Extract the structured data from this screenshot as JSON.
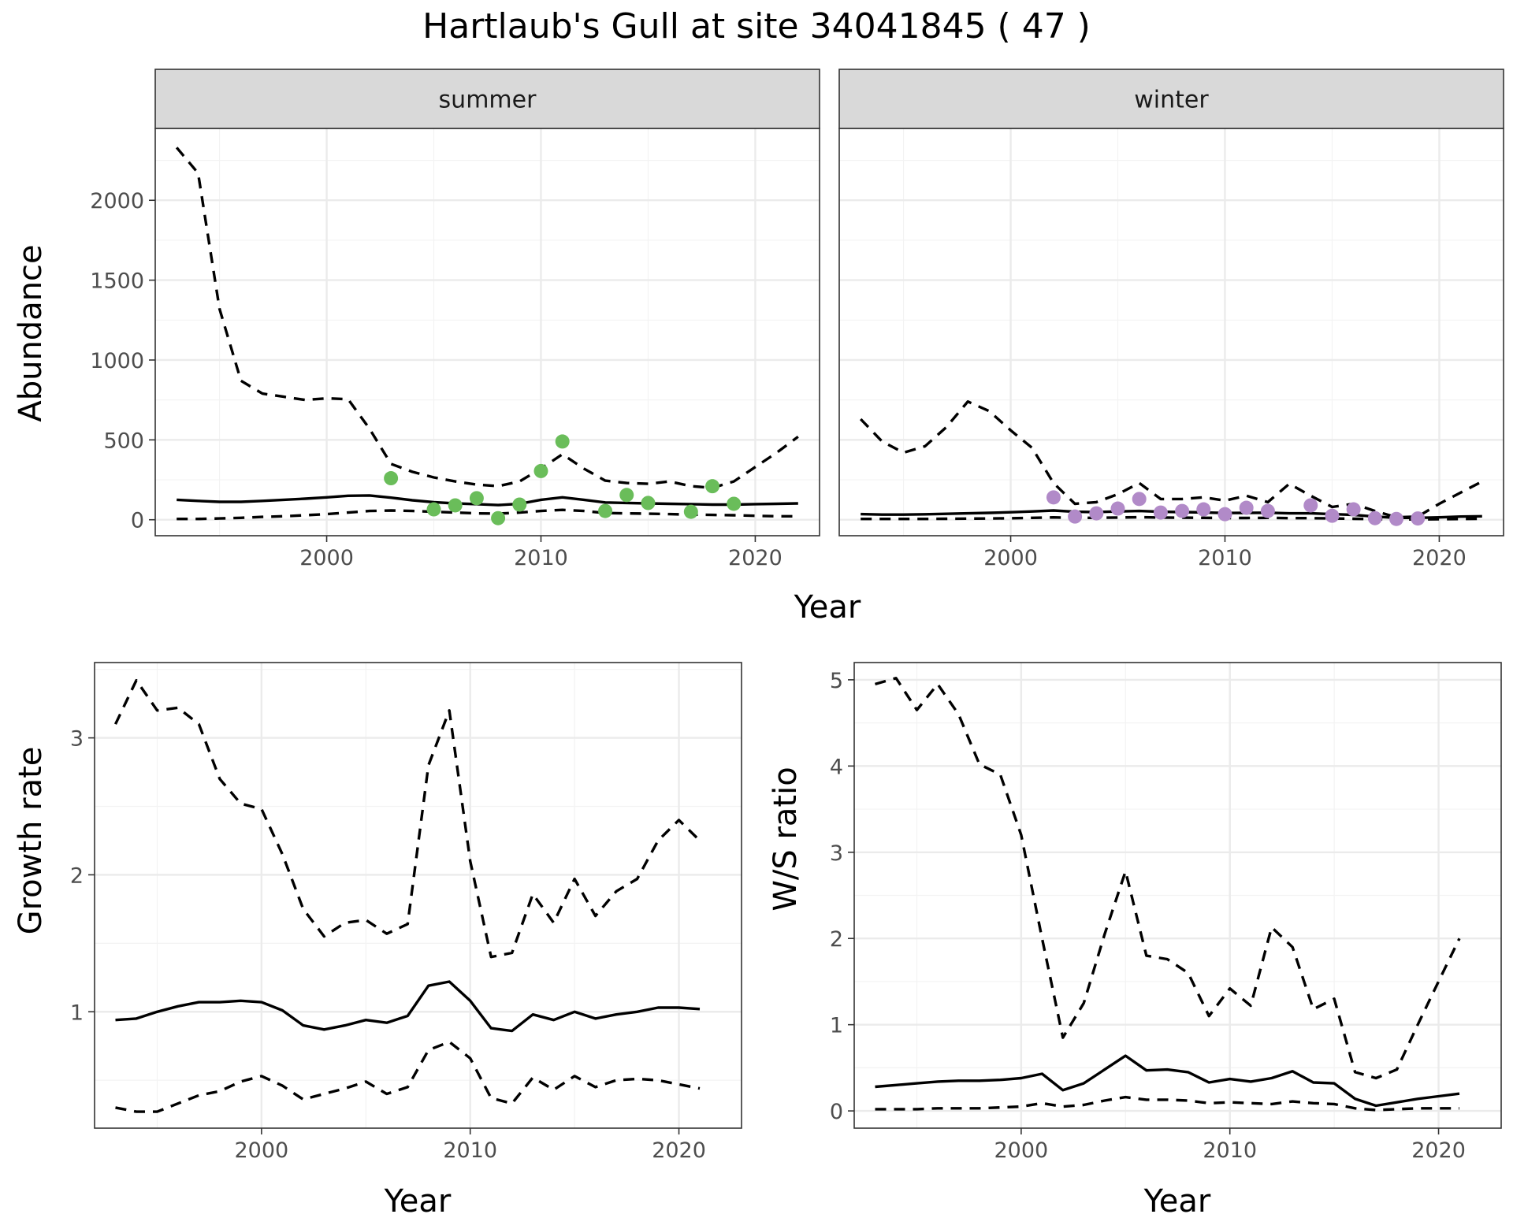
{
  "title": "Hartlaub's Gull at site 34041845 ( 47 )",
  "colors": {
    "summer_points": "#6abd5a",
    "winter_points": "#b18ac8",
    "lines": "#000000"
  },
  "chart_data": [
    {
      "type": "line",
      "panel": "summer",
      "facet_label": "summer",
      "xlabel": "Year",
      "ylabel": "Abundance",
      "xlim": [
        1992,
        2023
      ],
      "ylim": [
        -100,
        2450
      ],
      "x_ticks": [
        2000,
        2010,
        2020
      ],
      "y_ticks": [
        0,
        500,
        1000,
        1500,
        2000
      ],
      "grid": true,
      "x": [
        1993,
        1994,
        1995,
        1996,
        1997,
        1998,
        1999,
        2000,
        2001,
        2002,
        2003,
        2004,
        2005,
        2006,
        2007,
        2008,
        2009,
        2010,
        2011,
        2012,
        2013,
        2014,
        2015,
        2016,
        2017,
        2018,
        2019,
        2020,
        2021,
        2022
      ],
      "series": [
        {
          "role": "estimate",
          "values": [
            125,
            118,
            112,
            112,
            118,
            125,
            132,
            140,
            150,
            152,
            138,
            122,
            110,
            102,
            98,
            92,
            100,
            125,
            140,
            125,
            108,
            105,
            102,
            100,
            98,
            95,
            95,
            98,
            100,
            102
          ]
        },
        {
          "role": "upper",
          "values": [
            2330,
            2170,
            1320,
            870,
            790,
            770,
            750,
            760,
            755,
            570,
            350,
            300,
            265,
            240,
            220,
            210,
            240,
            320,
            410,
            320,
            245,
            230,
            225,
            240,
            210,
            200,
            240,
            330,
            420,
            520
          ]
        },
        {
          "role": "lower",
          "values": [
            5,
            5,
            8,
            12,
            18,
            22,
            28,
            35,
            45,
            55,
            58,
            55,
            50,
            45,
            40,
            38,
            45,
            55,
            62,
            55,
            42,
            40,
            38,
            35,
            32,
            30,
            28,
            25,
            22,
            22
          ]
        }
      ],
      "points": {
        "x": [
          2003,
          2005,
          2006,
          2007,
          2008,
          2009,
          2010,
          2011,
          2013,
          2014,
          2015,
          2017,
          2018,
          2019
        ],
        "y": [
          260,
          65,
          90,
          135,
          10,
          95,
          305,
          490,
          55,
          155,
          105,
          50,
          210,
          100
        ]
      }
    },
    {
      "type": "line",
      "panel": "winter",
      "facet_label": "winter",
      "xlabel": "Year",
      "ylabel": "Abundance",
      "xlim": [
        1992,
        2023
      ],
      "ylim": [
        -100,
        2450
      ],
      "x_ticks": [
        2000,
        2010,
        2020
      ],
      "y_ticks": [
        0,
        500,
        1000,
        1500,
        2000
      ],
      "grid": true,
      "x": [
        1993,
        1994,
        1995,
        1996,
        1997,
        1998,
        1999,
        2000,
        2001,
        2002,
        2003,
        2004,
        2005,
        2006,
        2007,
        2008,
        2009,
        2010,
        2011,
        2012,
        2013,
        2014,
        2015,
        2016,
        2017,
        2018,
        2019,
        2020,
        2021,
        2022
      ],
      "series": [
        {
          "role": "estimate",
          "values": [
            35,
            32,
            32,
            34,
            37,
            40,
            43,
            47,
            52,
            58,
            50,
            48,
            52,
            55,
            50,
            48,
            46,
            42,
            43,
            44,
            40,
            40,
            35,
            30,
            20,
            12,
            12,
            15,
            20,
            22
          ]
        },
        {
          "role": "upper",
          "values": [
            630,
            490,
            420,
            460,
            580,
            740,
            680,
            560,
            450,
            230,
            100,
            110,
            160,
            230,
            130,
            130,
            140,
            120,
            150,
            110,
            225,
            150,
            80,
            100,
            55,
            15,
            20,
            100,
            170,
            240
          ]
        },
        {
          "role": "lower",
          "values": [
            5,
            5,
            5,
            5,
            6,
            7,
            8,
            9,
            12,
            15,
            12,
            12,
            14,
            16,
            14,
            13,
            12,
            11,
            11,
            12,
            10,
            10,
            8,
            6,
            4,
            2,
            2,
            3,
            5,
            6
          ]
        }
      ],
      "points": {
        "x": [
          2002,
          2003,
          2004,
          2005,
          2006,
          2007,
          2008,
          2009,
          2010,
          2011,
          2012,
          2014,
          2015,
          2016,
          2017,
          2018,
          2019
        ],
        "y": [
          140,
          20,
          40,
          70,
          130,
          45,
          55,
          65,
          35,
          75,
          55,
          90,
          25,
          65,
          10,
          5,
          8
        ]
      }
    },
    {
      "type": "line",
      "panel": "growth",
      "xlabel": "Year",
      "ylabel": "Growth rate",
      "xlim": [
        1992,
        2023
      ],
      "ylim": [
        0.15,
        3.55
      ],
      "x_ticks": [
        2000,
        2010,
        2020
      ],
      "y_ticks": [
        1,
        2,
        3
      ],
      "grid": true,
      "x": [
        1993,
        1994,
        1995,
        1996,
        1997,
        1998,
        1999,
        2000,
        2001,
        2002,
        2003,
        2004,
        2005,
        2006,
        2007,
        2008,
        2009,
        2010,
        2011,
        2012,
        2013,
        2014,
        2015,
        2016,
        2017,
        2018,
        2019,
        2020,
        2021
      ],
      "series": [
        {
          "role": "estimate",
          "values": [
            0.94,
            0.95,
            1.0,
            1.04,
            1.07,
            1.07,
            1.08,
            1.07,
            1.01,
            0.9,
            0.87,
            0.9,
            0.94,
            0.92,
            0.97,
            1.19,
            1.22,
            1.08,
            0.88,
            0.86,
            0.98,
            0.94,
            1.0,
            0.95,
            0.98,
            1.0,
            1.03,
            1.03,
            1.02
          ]
        },
        {
          "role": "upper",
          "values": [
            3.1,
            3.42,
            3.2,
            3.22,
            3.1,
            2.7,
            2.52,
            2.48,
            2.15,
            1.75,
            1.55,
            1.65,
            1.67,
            1.57,
            1.64,
            2.8,
            3.2,
            2.1,
            1.4,
            1.43,
            1.86,
            1.65,
            1.97,
            1.7,
            1.88,
            1.97,
            2.25,
            2.4,
            2.25
          ]
        },
        {
          "role": "lower",
          "values": [
            0.3,
            0.27,
            0.27,
            0.33,
            0.39,
            0.42,
            0.49,
            0.53,
            0.46,
            0.36,
            0.4,
            0.44,
            0.49,
            0.4,
            0.45,
            0.72,
            0.78,
            0.66,
            0.37,
            0.33,
            0.52,
            0.43,
            0.53,
            0.45,
            0.5,
            0.51,
            0.5,
            0.47,
            0.44
          ]
        }
      ]
    },
    {
      "type": "line",
      "panel": "ratio",
      "xlabel": "Year",
      "ylabel": "W/S ratio",
      "xlim": [
        1992,
        2023
      ],
      "ylim": [
        -0.2,
        5.2
      ],
      "x_ticks": [
        2000,
        2010,
        2020
      ],
      "y_ticks": [
        0,
        1,
        2,
        3,
        4,
        5
      ],
      "grid": true,
      "x": [
        1993,
        1994,
        1995,
        1996,
        1997,
        1998,
        1999,
        2000,
        2001,
        2002,
        2003,
        2004,
        2005,
        2006,
        2007,
        2008,
        2009,
        2010,
        2011,
        2012,
        2013,
        2014,
        2015,
        2016,
        2017,
        2018,
        2019,
        2020,
        2021
      ],
      "series": [
        {
          "role": "estimate",
          "values": [
            0.28,
            0.3,
            0.32,
            0.34,
            0.35,
            0.35,
            0.36,
            0.38,
            0.43,
            0.24,
            0.32,
            0.48,
            0.64,
            0.47,
            0.48,
            0.45,
            0.33,
            0.37,
            0.34,
            0.38,
            0.46,
            0.33,
            0.32,
            0.14,
            0.06,
            0.1,
            0.14,
            0.17,
            0.2
          ]
        },
        {
          "role": "upper",
          "values": [
            4.95,
            5.02,
            4.65,
            4.95,
            4.6,
            4.02,
            3.9,
            3.2,
            2.0,
            0.85,
            1.25,
            2.05,
            2.78,
            1.8,
            1.76,
            1.6,
            1.1,
            1.42,
            1.22,
            2.13,
            1.9,
            1.18,
            1.3,
            0.45,
            0.38,
            0.48,
            1.0,
            1.5,
            2.0
          ]
        },
        {
          "role": "lower",
          "values": [
            0.02,
            0.02,
            0.02,
            0.03,
            0.03,
            0.03,
            0.04,
            0.05,
            0.09,
            0.05,
            0.07,
            0.12,
            0.16,
            0.13,
            0.13,
            0.12,
            0.09,
            0.1,
            0.09,
            0.08,
            0.11,
            0.09,
            0.08,
            0.03,
            0.01,
            0.02,
            0.03,
            0.03,
            0.03
          ]
        }
      ]
    }
  ]
}
